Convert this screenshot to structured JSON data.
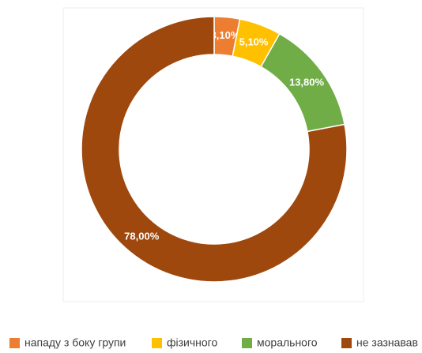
{
  "chart_data": {
    "type": "donut",
    "categories": [
      "нападу з боку групи",
      "фізичного",
      "морального",
      "не зазнавав"
    ],
    "values": [
      3.1,
      5.1,
      13.8,
      78.0
    ],
    "value_labels": [
      "3,10%",
      "5,10%",
      "13,80%",
      "78,00%"
    ],
    "colors": [
      "#ed7d31",
      "#ffc000",
      "#70ad47",
      "#9e480e"
    ],
    "legend": "bottom"
  }
}
